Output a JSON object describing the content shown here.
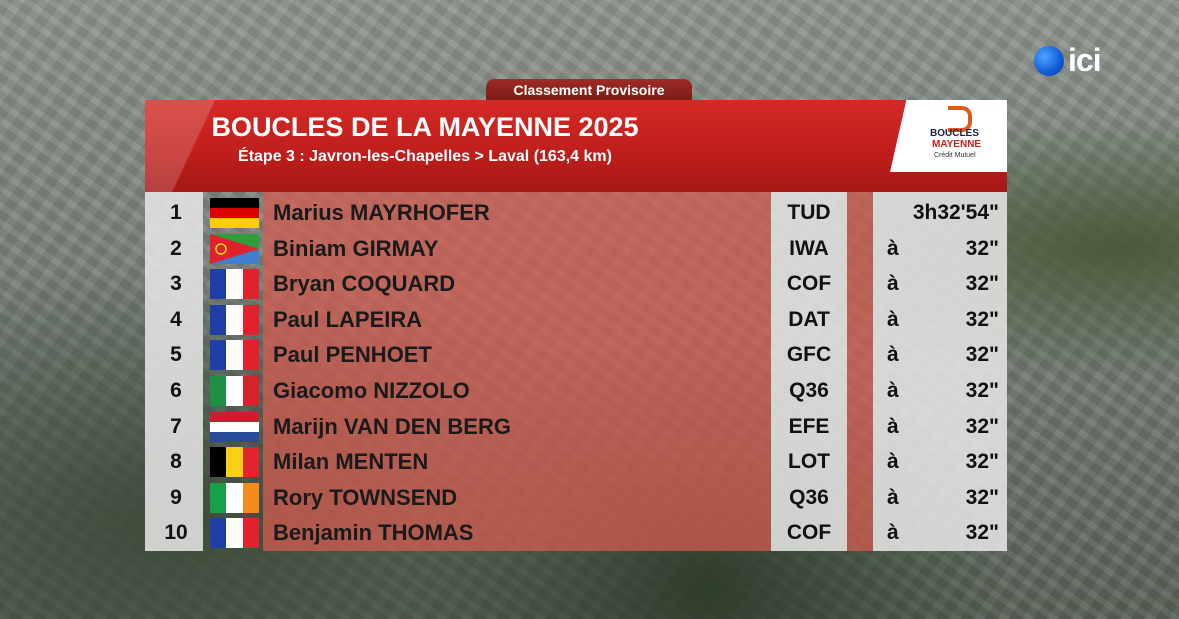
{
  "broadcaster": {
    "name": "ici"
  },
  "header": {
    "tag": "Classement Provisoire",
    "title": "BOUCLES DE LA MAYENNE 2025",
    "subtitle": "Étape 3 : Javron-les-Chapelles > Laval (163,4 km)"
  },
  "logo": {
    "line1": "BOUCLES",
    "line2": "MAYENNE",
    "line3": "Crédit Mutuel",
    "icon": "boucles-mayenne-logo-icon"
  },
  "colors": {
    "header_red": "#c01f1c",
    "row_red": "#d85c50",
    "panel_grey": "#e4e4e4"
  },
  "results": [
    {
      "rank": "1",
      "flag": "germany",
      "name": "Marius MAYRHOFER",
      "team": "TUD",
      "prefix": "",
      "time": "3h32'54\""
    },
    {
      "rank": "2",
      "flag": "eritrea",
      "name": "Biniam GIRMAY",
      "team": "IWA",
      "prefix": "à",
      "time": "32\""
    },
    {
      "rank": "3",
      "flag": "france",
      "name": "Bryan COQUARD",
      "team": "COF",
      "prefix": "à",
      "time": "32\""
    },
    {
      "rank": "4",
      "flag": "france",
      "name": "Paul LAPEIRA",
      "team": "DAT",
      "prefix": "à",
      "time": "32\""
    },
    {
      "rank": "5",
      "flag": "france",
      "name": "Paul PENHOET",
      "team": "GFC",
      "prefix": "à",
      "time": "32\""
    },
    {
      "rank": "6",
      "flag": "italy",
      "name": "Giacomo NIZZOLO",
      "team": "Q36",
      "prefix": "à",
      "time": "32\""
    },
    {
      "rank": "7",
      "flag": "netherlands",
      "name": "Marijn VAN DEN BERG",
      "team": "EFE",
      "prefix": "à",
      "time": "32\""
    },
    {
      "rank": "8",
      "flag": "belgium",
      "name": "Milan MENTEN",
      "team": "LOT",
      "prefix": "à",
      "time": "32\""
    },
    {
      "rank": "9",
      "flag": "ireland",
      "name": "Rory TOWNSEND",
      "team": "Q36",
      "prefix": "à",
      "time": "32\""
    },
    {
      "rank": "10",
      "flag": "france",
      "name": "Benjamin THOMAS",
      "team": "COF",
      "prefix": "à",
      "time": "32\""
    }
  ]
}
